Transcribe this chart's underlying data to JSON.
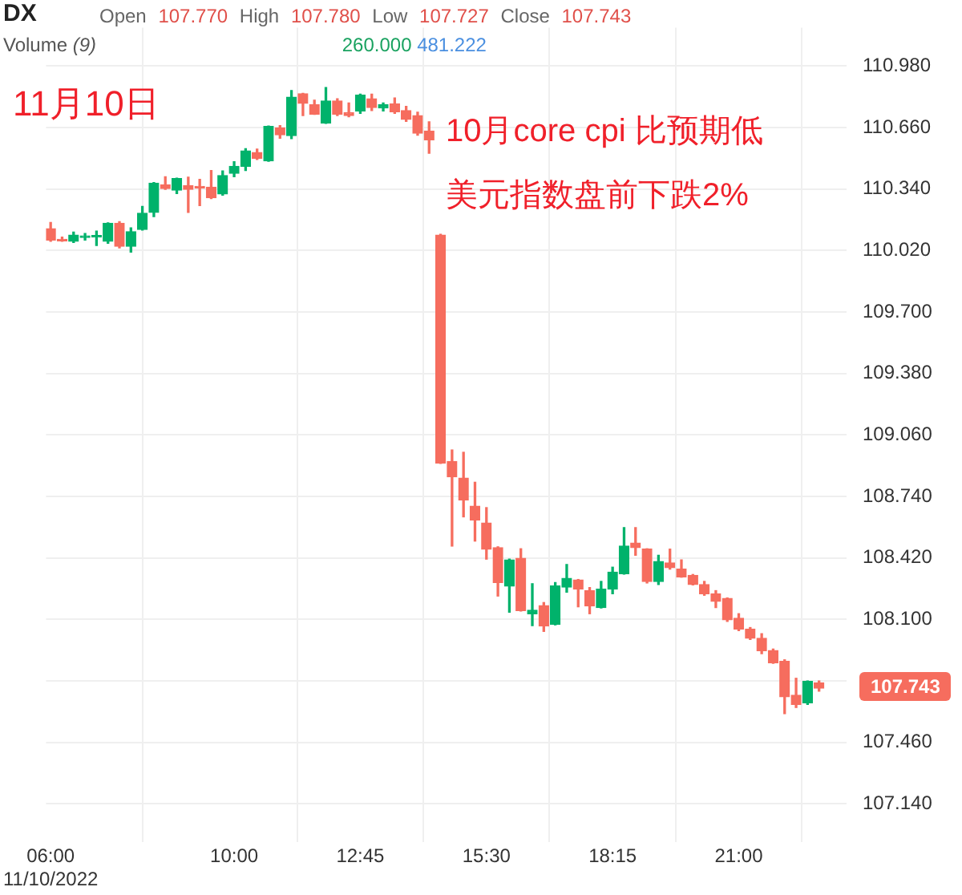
{
  "chart_data": {
    "type": "candlestick",
    "title": "DX",
    "subtitle": "Open 107.770 High 107.780 Low 107.727 Close 107.743",
    "annotations": [
      "Volume (9) 260.000 481.222",
      "11月10日",
      "10月core cpi 比预期低",
      "美元指数盘前下跌2%",
      "107.743"
    ],
    "x": [
      6,
      6.25,
      6.5,
      6.75,
      7,
      7.25,
      7.5,
      7.75,
      8,
      8.25,
      8.5,
      8.75,
      9,
      9.25,
      9.5,
      9.75,
      10,
      10.25,
      10.5,
      10.75,
      11,
      11.25,
      11.5,
      11.75,
      12,
      12.25,
      12.5,
      12.75,
      13,
      13.25,
      13.5,
      13.75,
      14,
      14.25,
      14.5,
      14.75,
      15,
      15.25,
      15.5,
      15.75,
      16,
      16.25,
      16.5,
      16.75,
      17,
      17.25,
      17.5,
      17.75,
      18,
      18.25,
      18.5,
      18.75,
      19,
      19.25,
      19.5,
      19.75,
      20,
      20.25,
      20.5,
      20.75,
      21,
      21.25,
      21.5,
      21.75,
      22,
      22.25,
      22.5,
      22.75
    ],
    "ohlc": [
      [
        110.134,
        110.166,
        110.068,
        110.074
      ],
      [
        110.078,
        110.09,
        110.068,
        110.07
      ],
      [
        110.068,
        110.116,
        110.062,
        110.1
      ],
      [
        110.088,
        110.108,
        110.074,
        110.096
      ],
      [
        110.09,
        110.121,
        110.046,
        110.098
      ],
      [
        110.068,
        110.164,
        110.058,
        110.162
      ],
      [
        110.162,
        110.17,
        110.034,
        110.042
      ],
      [
        110.042,
        110.138,
        110.012,
        110.118
      ],
      [
        110.13,
        110.249,
        110.126,
        110.214
      ],
      [
        110.218,
        110.374,
        110.196,
        110.37
      ],
      [
        110.362,
        110.404,
        110.338,
        110.342
      ],
      [
        110.334,
        110.396,
        110.316,
        110.394
      ],
      [
        110.358,
        110.402,
        110.218,
        110.338
      ],
      [
        110.354,
        110.39,
        110.254,
        110.346
      ],
      [
        110.35,
        110.436,
        110.29,
        110.294
      ],
      [
        110.314,
        110.434,
        110.308,
        110.41
      ],
      [
        110.422,
        110.482,
        110.404,
        110.458
      ],
      [
        110.458,
        110.55,
        110.436,
        110.538
      ],
      [
        110.53,
        110.548,
        110.494,
        110.5
      ],
      [
        110.486,
        110.668,
        110.484,
        110.666
      ],
      [
        110.658,
        110.67,
        110.604,
        110.622
      ],
      [
        110.618,
        110.852,
        110.602,
        110.818
      ],
      [
        110.836,
        110.838,
        110.722,
        110.786
      ],
      [
        110.778,
        110.802,
        110.728,
        110.73
      ],
      [
        110.684,
        110.868,
        110.682,
        110.798
      ],
      [
        110.798,
        110.81,
        110.722,
        110.73
      ],
      [
        110.738,
        110.788,
        110.716,
        110.722
      ],
      [
        110.746,
        110.834,
        110.734,
        110.828
      ],
      [
        110.81,
        110.834,
        110.748,
        110.764
      ],
      [
        110.762,
        110.788,
        110.746,
        110.778
      ],
      [
        110.782,
        110.814,
        110.734,
        110.742
      ],
      [
        110.748,
        110.77,
        110.692,
        110.702
      ],
      [
        110.722,
        110.74,
        110.62,
        110.63
      ],
      [
        110.642,
        110.69,
        110.526,
        110.596
      ],
      [
        110.1,
        110.104,
        108.912,
        108.914
      ],
      [
        108.922,
        108.982,
        108.482,
        108.842
      ],
      [
        108.836,
        108.97,
        108.634,
        108.722
      ],
      [
        108.69,
        108.814,
        108.508,
        108.618
      ],
      [
        108.602,
        108.682,
        108.414,
        108.466
      ],
      [
        108.474,
        108.478,
        108.222,
        108.292
      ],
      [
        108.274,
        108.414,
        108.138,
        108.41
      ],
      [
        108.418,
        108.468,
        108.144,
        108.146
      ],
      [
        108.13,
        108.286,
        108.068,
        108.148
      ],
      [
        108.172,
        108.188,
        108.038,
        108.066
      ],
      [
        108.074,
        108.292,
        108.072,
        108.274
      ],
      [
        108.268,
        108.386,
        108.242,
        108.314
      ],
      [
        108.306,
        108.308,
        108.166,
        108.258
      ],
      [
        108.25,
        108.266,
        108.13,
        108.17
      ],
      [
        108.162,
        108.298,
        108.16,
        108.258
      ],
      [
        108.258,
        108.372,
        108.234,
        108.346
      ],
      [
        108.338,
        108.578,
        108.336,
        108.482
      ],
      [
        108.498,
        108.578,
        108.434,
        108.474
      ],
      [
        108.466,
        108.468,
        108.29,
        108.298
      ],
      [
        108.298,
        108.434,
        108.282,
        108.402
      ],
      [
        108.394,
        108.466,
        108.362,
        108.37
      ],
      [
        108.362,
        108.41,
        108.32,
        108.322
      ],
      [
        108.33,
        108.334,
        108.28,
        108.282
      ],
      [
        108.282,
        108.298,
        108.226,
        108.234
      ],
      [
        108.234,
        108.25,
        108.162,
        108.194
      ],
      [
        108.21,
        108.212,
        108.09,
        108.098
      ],
      [
        108.106,
        108.13,
        108.042,
        108.05
      ],
      [
        108.05,
        108.058,
        107.996,
        108.002
      ],
      [
        108.002,
        108.026,
        107.922,
        107.938
      ],
      [
        107.938,
        107.946,
        107.872,
        107.874
      ],
      [
        107.882,
        107.89,
        107.61,
        107.698
      ],
      [
        107.706,
        107.794,
        107.642,
        107.658
      ],
      [
        107.666,
        107.78,
        107.658,
        107.778
      ],
      [
        107.77,
        107.78,
        107.727,
        107.743
      ]
    ],
    "colors": [
      "#f66d5e",
      "#f66d5e",
      "#00b26b",
      "#00b26b",
      "#00b26b",
      "#00b26b",
      "#f66d5e",
      "#00b26b",
      "#00b26b",
      "#00b26b",
      "#f66d5e",
      "#00b26b",
      "#f66d5e",
      "#f66d5e",
      "#f66d5e",
      "#00b26b",
      "#00b26b",
      "#00b26b",
      "#f66d5e",
      "#00b26b",
      "#f66d5e",
      "#00b26b",
      "#f66d5e",
      "#f66d5e",
      "#00b26b",
      "#f66d5e",
      "#f66d5e",
      "#00b26b",
      "#f66d5e",
      "#00b26b",
      "#f66d5e",
      "#f66d5e",
      "#f66d5e",
      "#f66d5e",
      "#f66d5e",
      "#f66d5e",
      "#f66d5e",
      "#f66d5e",
      "#f66d5e",
      "#f66d5e",
      "#00b26b",
      "#f66d5e",
      "#00b26b",
      "#f66d5e",
      "#00b26b",
      "#00b26b",
      "#f66d5e",
      "#f66d5e",
      "#00b26b",
      "#00b26b",
      "#00b26b",
      "#f66d5e",
      "#f66d5e",
      "#00b26b",
      "#f66d5e",
      "#f66d5e",
      "#f66d5e",
      "#f66d5e",
      "#f66d5e",
      "#f66d5e",
      "#f66d5e",
      "#f66d5e",
      "#f66d5e",
      "#f66d5e",
      "#f66d5e",
      "#f66d5e",
      "#00b26b",
      "#f66d5e"
    ],
    "xlim": [
      5.9,
      23.35
    ],
    "xticks": [
      {
        "value": 6,
        "label": "06:00\n11/10/2022"
      },
      {
        "value": 10,
        "label": "10:00"
      },
      {
        "value": 12.75,
        "label": "12:45"
      },
      {
        "value": 15.5,
        "label": "15:30"
      },
      {
        "value": 18.25,
        "label": "18:15"
      },
      {
        "value": 21,
        "label": "21:00"
      }
    ],
    "ylim": [
      106.94,
      111.18
    ],
    "yticks": [
      {
        "value": 107.14,
        "label": "107.140"
      },
      {
        "value": 107.46,
        "label": "107.460"
      },
      {
        "value": 107.78,
        "label": null
      },
      {
        "value": 108.1,
        "label": "108.100"
      },
      {
        "value": 108.42,
        "label": "108.420"
      },
      {
        "value": 108.74,
        "label": "108.740"
      },
      {
        "value": 109.06,
        "label": "109.060"
      },
      {
        "value": 109.38,
        "label": "109.380"
      },
      {
        "value": 109.7,
        "label": "109.700"
      },
      {
        "value": 110.02,
        "label": "110.020"
      },
      {
        "value": 110.34,
        "label": "110.340"
      },
      {
        "value": 110.66,
        "label": "110.660"
      },
      {
        "value": 110.98,
        "label": "110.980"
      }
    ],
    "grid": true
  }
}
